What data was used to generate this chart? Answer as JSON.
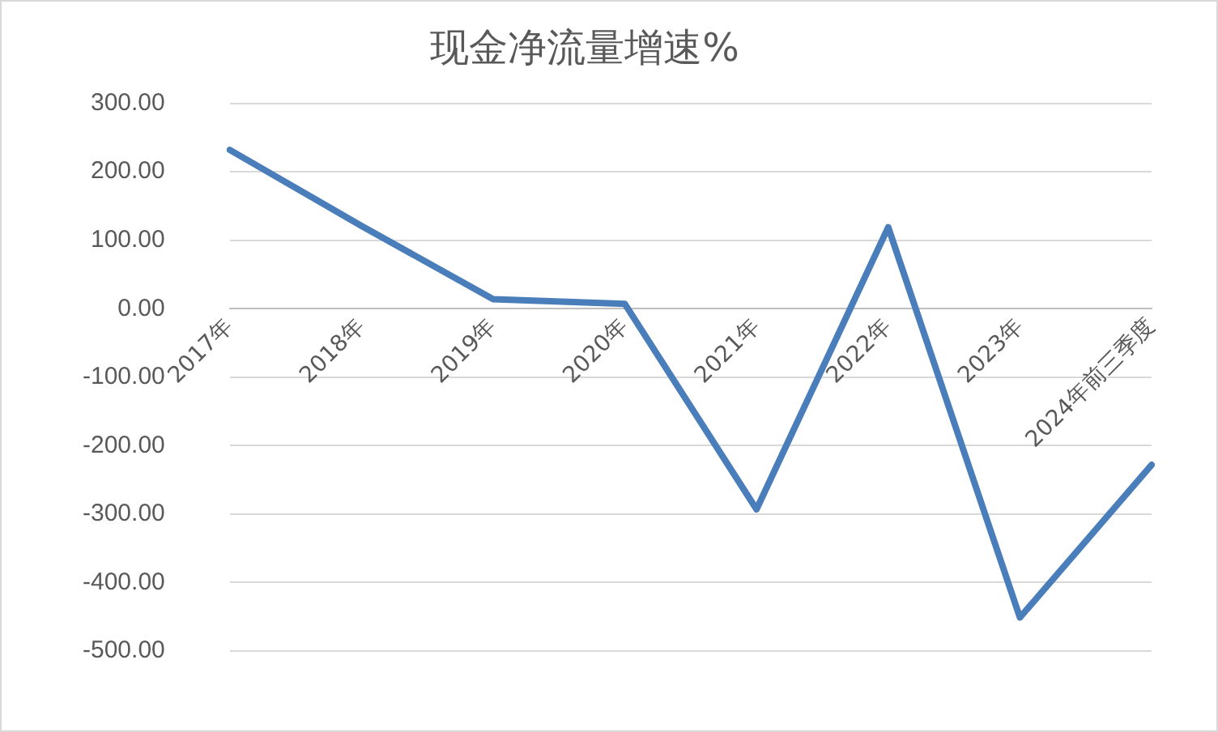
{
  "chart_data": {
    "type": "line",
    "title": "现金净流量增速%",
    "categories": [
      "2017年",
      "2018年",
      "2019年",
      "2020年",
      "2021年",
      "2022年",
      "2023年",
      "2024年前三季度"
    ],
    "series": [
      {
        "color": "#4a7ebb",
        "values": [
          232,
          121,
          14,
          7,
          -293,
          119,
          -451,
          -228
        ]
      }
    ],
    "ylim": [
      -500,
      300
    ],
    "yticks": [
      {
        "value": -500,
        "label": "-500.00"
      },
      {
        "value": -400,
        "label": "-400.00"
      },
      {
        "value": -300,
        "label": "-300.00"
      },
      {
        "value": -200,
        "label": "-200.00"
      },
      {
        "value": -100,
        "label": "-100.00"
      },
      {
        "value": 0,
        "label": "0.00"
      },
      {
        "value": 100,
        "label": "100.00"
      },
      {
        "value": 200,
        "label": "200.00"
      },
      {
        "value": 300,
        "label": "300.00"
      }
    ],
    "grid": "y",
    "legend": false,
    "marker": "none",
    "line_style": "solid"
  }
}
